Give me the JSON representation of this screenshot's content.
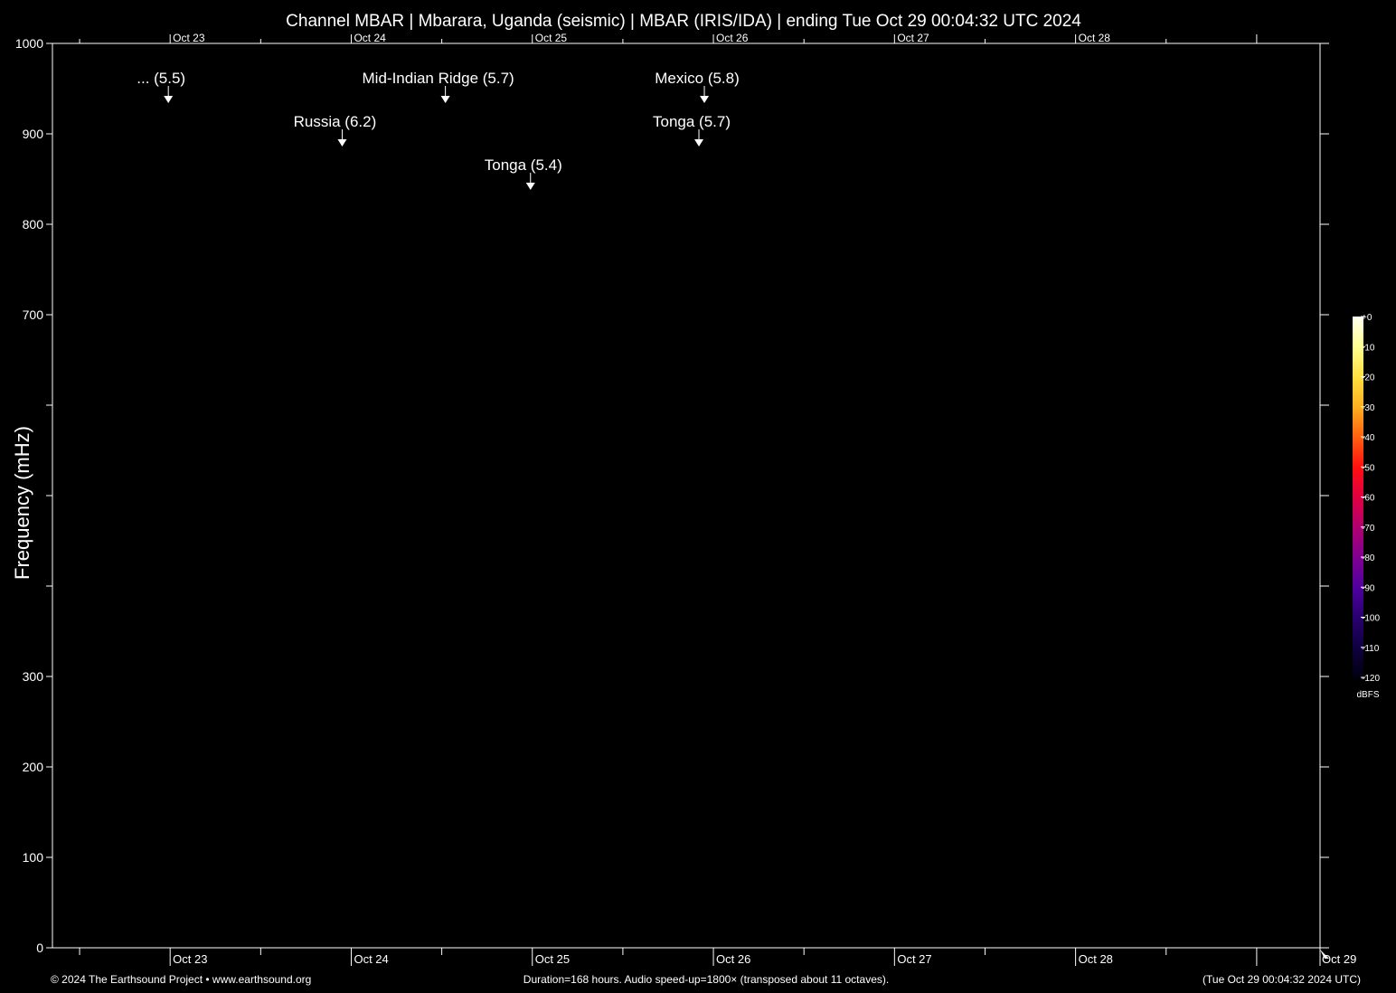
{
  "chart_data": {
    "type": "heatmap",
    "title": "Channel MBAR | Mbarara, Uganda (seismic) | MBAR (IRIS/IDA) | ending Tue Oct 29 00:04:32 UTC 2024",
    "ylabel": "Frequency (mHz)",
    "ylim": [
      0,
      1000
    ],
    "y_ticks": [
      {
        "value": 0,
        "label": "0"
      },
      {
        "value": 100,
        "label": "100"
      },
      {
        "value": 200,
        "label": "200"
      },
      {
        "value": 300,
        "label": "300"
      },
      {
        "value": 400,
        "label": ""
      },
      {
        "value": 500,
        "label": ""
      },
      {
        "value": 600,
        "label": ""
      },
      {
        "value": 700,
        "label": "700"
      },
      {
        "value": 800,
        "label": "800"
      },
      {
        "value": 900,
        "label": "900"
      },
      {
        "value": 1000,
        "label": "1000"
      }
    ],
    "x_range_days": [
      22.35,
      29.35
    ],
    "x_day_ticks": [
      {
        "day": 23,
        "label": "Oct 23"
      },
      {
        "day": 24,
        "label": "Oct 24"
      },
      {
        "day": 25,
        "label": "Oct 25"
      },
      {
        "day": 26,
        "label": "Oct 26"
      },
      {
        "day": 27,
        "label": "Oct 27"
      },
      {
        "day": 28,
        "label": "Oct 28"
      }
    ],
    "end_label": "Oct 29",
    "events": [
      {
        "label": "... (5.5)",
        "day": 22.99,
        "level": 0
      },
      {
        "label": "Mid-Indian Ridge (5.7)",
        "day": 24.52,
        "level": 0
      },
      {
        "label": "Mexico (5.8)",
        "day": 25.95,
        "level": 0
      },
      {
        "label": "Russia (6.2)",
        "day": 23.95,
        "level": 1
      },
      {
        "label": "Tonga (5.7)",
        "day": 25.92,
        "level": 1
      },
      {
        "label": "Tonga (5.4)",
        "day": 24.99,
        "level": 2
      }
    ],
    "colorbar": {
      "unit": "dBFS",
      "range": [
        -120,
        0
      ],
      "ticks": [
        "+0",
        "-10",
        "-20",
        "-30",
        "-40",
        "-50",
        "-60",
        "-70",
        "-80",
        "-90",
        "-100",
        "-110",
        "-120"
      ],
      "colors": [
        "#fffff0",
        "#ffff90",
        "#ffe040",
        "#ffb020",
        "#ff6010",
        "#ff1010",
        "#e00040",
        "#b00070",
        "#800090",
        "#5000a0",
        "#280070",
        "#100040",
        "#000010"
      ]
    }
  },
  "footer": {
    "copyright": "© 2024 The Earthsound Project • www.earthsound.org",
    "duration": "Duration=168 hours. Audio speed-up=1800× (transposed about 11 octaves).",
    "timestamp": "(Tue Oct 29 00:04:32 2024 UTC)"
  }
}
